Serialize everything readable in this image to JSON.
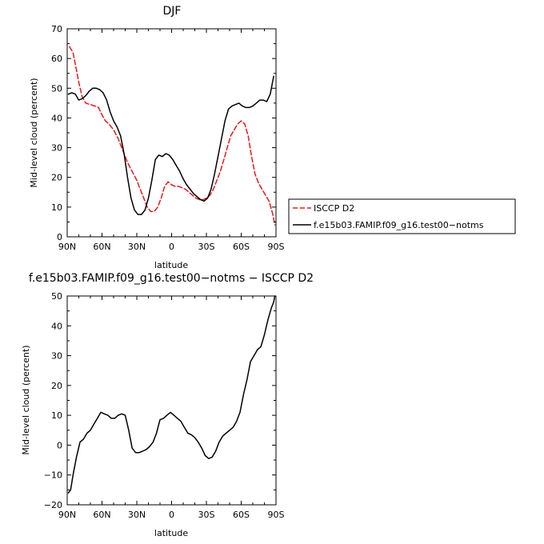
{
  "chart_data": [
    {
      "type": "line",
      "title": "DJF",
      "xlabel": "latitude",
      "ylabel": "Mid-level cloud (percent)",
      "xlim": [
        90,
        -90
      ],
      "ylim": [
        0,
        70
      ],
      "xticks": [
        90,
        60,
        30,
        0,
        -30,
        -60,
        -90
      ],
      "xtick_labels": [
        "90N",
        "60N",
        "30N",
        "0",
        "30S",
        "60S",
        "90S"
      ],
      "yticks": [
        0,
        10,
        20,
        30,
        40,
        50,
        60,
        70
      ],
      "ytick_labels": [
        "0",
        "10",
        "20",
        "30",
        "40",
        "50",
        "60",
        "70"
      ],
      "legend": "right",
      "series": [
        {
          "name": "ISCCP D2",
          "color": "#e41a1c",
          "style": "dashed",
          "x": [
            88,
            85,
            83,
            80,
            77,
            74,
            70,
            66,
            63,
            60,
            57,
            54,
            50,
            46,
            42,
            38,
            34,
            30,
            27,
            24,
            21,
            18,
            15,
            12,
            9,
            6,
            3,
            0,
            -3,
            -6,
            -9,
            -12,
            -15,
            -18,
            -21,
            -24,
            -27,
            -30,
            -33,
            -36,
            -39,
            -42,
            -45,
            -48,
            -51,
            -54,
            -57,
            -60,
            -63,
            -66,
            -69,
            -72,
            -75,
            -78,
            -81,
            -84,
            -87,
            -89
          ],
          "y": [
            64,
            62,
            58,
            52,
            47,
            45,
            44.5,
            44,
            43.5,
            41,
            39,
            38,
            36,
            33,
            29,
            25,
            22,
            19,
            16,
            13,
            10,
            8.5,
            8.5,
            10,
            13,
            17,
            18.5,
            17.5,
            17,
            17,
            16.5,
            16,
            15,
            14,
            13,
            12.5,
            12.5,
            13,
            14,
            16,
            19,
            22,
            26,
            30,
            34,
            36,
            38,
            39,
            38,
            34,
            27,
            21,
            18,
            16,
            14,
            12,
            8,
            4
          ]
        },
        {
          "name": "f.e15b03.FAMIP.f09_g16.test00−notms",
          "color": "#000000",
          "style": "solid",
          "x": [
            89,
            86,
            83,
            80,
            77,
            74,
            71,
            68,
            65,
            62,
            59,
            56,
            53,
            50,
            47,
            44,
            41,
            38,
            35,
            32,
            29,
            26,
            23,
            20,
            17,
            14,
            11,
            8,
            5,
            2,
            -1,
            -4,
            -7,
            -10,
            -13,
            -16,
            -19,
            -22,
            -25,
            -28,
            -31,
            -34,
            -37,
            -40,
            -43,
            -46,
            -49,
            -52,
            -55,
            -58,
            -61,
            -64,
            -67,
            -70,
            -73,
            -76,
            -79,
            -82,
            -85,
            -88
          ],
          "y": [
            48,
            48.5,
            48,
            46,
            46.5,
            47.5,
            49,
            50,
            50,
            49.5,
            48.5,
            46,
            42,
            39,
            37,
            34,
            28,
            20,
            13,
            9,
            7.5,
            7.5,
            9,
            13,
            19,
            26,
            27.5,
            27,
            28,
            27.5,
            26,
            24,
            22,
            19.5,
            17.5,
            16,
            14.5,
            13.5,
            12.5,
            12,
            13,
            16,
            21,
            27,
            33,
            39,
            43,
            44,
            44.5,
            45,
            44,
            43.5,
            43.5,
            44,
            45,
            46,
            46,
            45.5,
            48,
            54
          ]
        }
      ]
    },
    {
      "type": "line",
      "title": "f.e15b03.FAMIP.f09_g16.test00−notms − ISCCP D2",
      "xlabel": "latitude",
      "ylabel": "Mid-level cloud (percent)",
      "xlim": [
        90,
        -90
      ],
      "ylim": [
        -20,
        50
      ],
      "xticks": [
        90,
        60,
        30,
        0,
        -30,
        -60,
        -90
      ],
      "xtick_labels": [
        "90N",
        "60N",
        "30N",
        "0",
        "30S",
        "60S",
        "90S"
      ],
      "yticks": [
        -20,
        -10,
        0,
        10,
        20,
        30,
        40,
        50
      ],
      "ytick_labels": [
        "−20",
        "−10",
        "0",
        "10",
        "20",
        "30",
        "40",
        "50"
      ],
      "series": [
        {
          "color": "#000000",
          "style": "solid",
          "x": [
            89,
            87,
            85,
            82,
            79,
            76,
            73,
            70,
            67,
            64,
            61,
            58,
            55,
            52,
            49,
            46,
            43,
            40,
            37,
            34,
            31,
            28,
            25,
            22,
            19,
            16,
            13,
            10,
            7,
            4,
            1,
            -2,
            -5,
            -8,
            -11,
            -14,
            -17,
            -20,
            -23,
            -26,
            -29,
            -32,
            -35,
            -38,
            -41,
            -44,
            -47,
            -50,
            -53,
            -56,
            -59,
            -62,
            -65,
            -68,
            -71,
            -74,
            -77,
            -80,
            -83,
            -86,
            -88,
            -89
          ],
          "y": [
            -16,
            -15,
            -10,
            -4,
            1,
            2,
            4,
            5,
            7,
            9,
            11,
            10.5,
            10,
            9,
            9,
            10,
            10.5,
            10,
            5,
            -1,
            -2.5,
            -2.5,
            -2,
            -1.5,
            -0.5,
            1,
            4,
            8.5,
            9,
            10,
            11,
            10,
            9,
            8,
            6,
            4,
            3.5,
            2.5,
            1,
            -1,
            -3.5,
            -4.5,
            -4,
            -2,
            1,
            3,
            4,
            5,
            6,
            8,
            11,
            17,
            22,
            28,
            30,
            32,
            33,
            37,
            42,
            46,
            48,
            50
          ]
        }
      ]
    }
  ]
}
